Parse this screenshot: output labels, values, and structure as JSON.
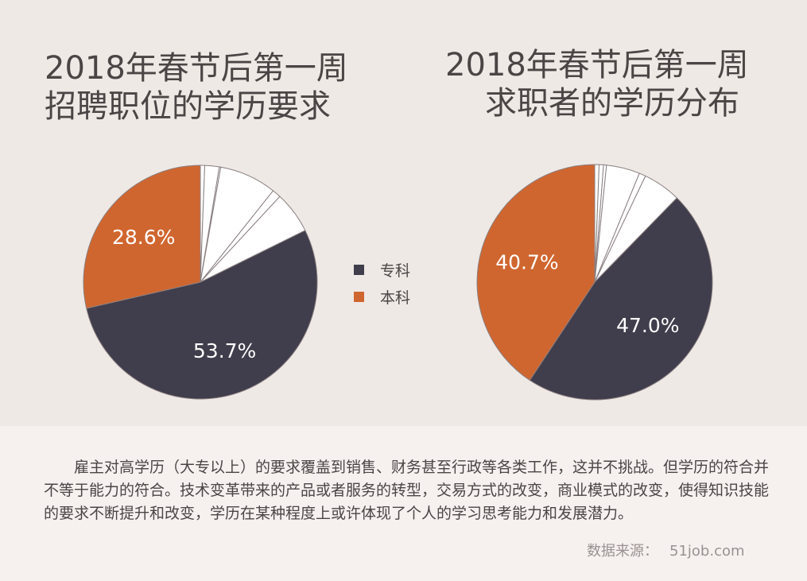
{
  "colors": {
    "zhuanke": "#403d4c",
    "benke": "#d0662f",
    "other": "#ffffff",
    "background": "#efe9e6"
  },
  "chart_data": [
    {
      "type": "pie",
      "title_lines": [
        "2018年春节后第一周",
        "招聘职位的学历要求"
      ],
      "slices": [
        {
          "name": "专科",
          "value": 53.7,
          "label": "53.7%"
        },
        {
          "name": "本科",
          "value": 28.6,
          "label": "28.6%"
        },
        {
          "name": "",
          "value": 0.6,
          "label": ""
        },
        {
          "name": "",
          "value": 2.0,
          "label": ""
        },
        {
          "name": "",
          "value": 0.2,
          "label": ""
        },
        {
          "name": "",
          "value": 7.9,
          "label": ""
        },
        {
          "name": "",
          "value": 1.2,
          "label": ""
        },
        {
          "name": "",
          "value": 5.8,
          "label": ""
        }
      ]
    },
    {
      "type": "pie",
      "title_lines": [
        "2018年春节后第一周",
        "求职者的学历分布"
      ],
      "slices": [
        {
          "name": "专科",
          "value": 47.0,
          "label": "47.0%"
        },
        {
          "name": "本科",
          "value": 40.7,
          "label": "40.7%"
        },
        {
          "name": "",
          "value": 0.6,
          "label": ""
        },
        {
          "name": "",
          "value": 0.6,
          "label": ""
        },
        {
          "name": "",
          "value": 0.4,
          "label": ""
        },
        {
          "name": "",
          "value": 4.6,
          "label": ""
        },
        {
          "name": "",
          "value": 0.9,
          "label": ""
        },
        {
          "name": "",
          "value": 5.2,
          "label": ""
        }
      ]
    }
  ],
  "legend": [
    {
      "label": "专科",
      "color": "#403d4c"
    },
    {
      "label": "本科",
      "color": "#d0662f"
    }
  ],
  "paragraph": "雇主对高学历（大专以上）的要求覆盖到销售、财务甚至行政等各类工作，这并不挑战。但学历的符合并不等于能力的符合。技术变革带来的产品或者服务的转型，交易方式的改变，商业模式的改变，使得知识技能的要求不断提升和改变，学历在某种程度上或许体现了个人的学习思考能力和发展潜力。",
  "source": {
    "label": "数据来源：",
    "value": "51job.com"
  }
}
